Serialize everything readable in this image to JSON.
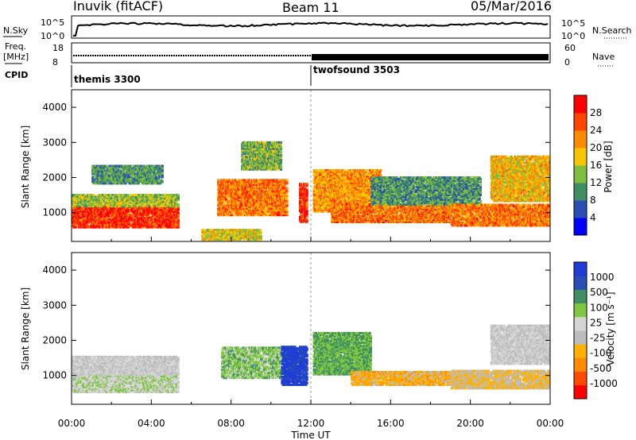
{
  "header": {
    "station": "Inuvik (fitACF)",
    "beam": "Beam 11",
    "date": "05/Mar/2016"
  },
  "strip_panels": {
    "nsky": {
      "label": "N.Sky",
      "ticks": [
        "10^5",
        "10^0"
      ]
    },
    "nsearch": {
      "label": "N.Search",
      "ticks": [
        "10^5",
        "10^0"
      ]
    },
    "freq": {
      "label_line1": "Freq.",
      "label_line2": "[MHz]",
      "ticks": [
        "18",
        "8"
      ]
    },
    "nave": {
      "label": "Nave",
      "ticks": [
        "60",
        "0"
      ]
    },
    "cpid": {
      "label": "CPID",
      "programs": [
        {
          "name": "themis 3300",
          "start_hour": 0
        },
        {
          "name": "twofsound 3503",
          "start_hour": 12
        }
      ]
    }
  },
  "colors": {
    "power": [
      "#0000ff",
      "#2a4fb4",
      "#3f8f63",
      "#7fbf3f",
      "#f7c600",
      "#ff8c00",
      "#ff4500",
      "#ff0000"
    ],
    "velocity": [
      "#ff0000",
      "#ff4a00",
      "#ff8c00",
      "#ffb000",
      "#bdbdbd",
      "#d4d4d4",
      "#7fc83f",
      "#3f8f63",
      "#2a4fb4",
      "#1f3dd6"
    ],
    "ground_scatter": "#a0a0a0"
  },
  "chart_data": [
    {
      "type": "heatmap",
      "panel": "power",
      "xlabel": "Time UT",
      "ylabel": "Slant Range [km]",
      "xlim": [
        0,
        24
      ],
      "ylim": [
        180,
        4500
      ],
      "yticks": [
        1000,
        2000,
        3000,
        4000
      ],
      "xticks": [
        "00:00",
        "04:00",
        "08:00",
        "12:00",
        "16:00",
        "20:00",
        "00:00"
      ],
      "colorbar": {
        "label": "Power [dB]",
        "ticks": [
          "28",
          "24",
          "20",
          "16",
          "12",
          "8",
          "4"
        ],
        "range": [
          0,
          30
        ]
      },
      "regions": [
        {
          "t0": 0.0,
          "t1": 5.3,
          "r0": 550,
          "r1": 1150,
          "value": 26
        },
        {
          "t0": 0.0,
          "t1": 5.3,
          "r0": 1150,
          "r1": 1500,
          "value": 14
        },
        {
          "t0": 1.0,
          "t1": 4.5,
          "r0": 1800,
          "r1": 2300,
          "value": 10
        },
        {
          "t0": 6.5,
          "t1": 9.5,
          "r0": 200,
          "r1": 500,
          "value": 16
        },
        {
          "t0": 7.3,
          "t1": 10.8,
          "r0": 900,
          "r1": 1900,
          "value": 22
        },
        {
          "t0": 8.5,
          "t1": 10.5,
          "r0": 2200,
          "r1": 3000,
          "value": 12
        },
        {
          "t0": 11.4,
          "t1": 11.8,
          "r0": 700,
          "r1": 1800,
          "value": 26
        },
        {
          "t0": 12.1,
          "t1": 15.5,
          "r0": 1000,
          "r1": 2200,
          "value": 20
        },
        {
          "t0": 13.0,
          "t1": 19.0,
          "r0": 700,
          "r1": 1200,
          "value": 22
        },
        {
          "t0": 15.0,
          "t1": 20.5,
          "r0": 1200,
          "r1": 2000,
          "value": 10
        },
        {
          "t0": 19.0,
          "t1": 24.0,
          "r0": 600,
          "r1": 1200,
          "value": 22
        },
        {
          "t0": 21.0,
          "t1": 24.0,
          "r0": 1300,
          "r1": 2600,
          "value": 18
        }
      ]
    },
    {
      "type": "heatmap",
      "panel": "velocity",
      "xlabel": "Time UT",
      "ylabel": "Slant Range [km]",
      "xlim": [
        0,
        24
      ],
      "ylim": [
        180,
        4500
      ],
      "yticks": [
        1000,
        2000,
        3000,
        4000
      ],
      "xticks": [
        "00:00",
        "04:00",
        "08:00",
        "12:00",
        "16:00",
        "20:00",
        "00:00"
      ],
      "colorbar": {
        "label": "Velocity [m s⁻¹]",
        "ticks": [
          "1000",
          "500",
          "100",
          "25",
          "-25",
          "-100",
          "-500",
          "-1000"
        ],
        "range": [
          -1000,
          1000
        ]
      },
      "regions": [
        {
          "t0": 0.0,
          "t1": 5.3,
          "r0": 500,
          "r1": 1000,
          "value": 150
        },
        {
          "t0": 0.0,
          "t1": 5.3,
          "r0": 1000,
          "r1": 1500,
          "value": 0
        },
        {
          "t0": 7.5,
          "t1": 10.5,
          "r0": 900,
          "r1": 1800,
          "value": 300
        },
        {
          "t0": 10.5,
          "t1": 11.8,
          "r0": 700,
          "r1": 1800,
          "value": 900
        },
        {
          "t0": 12.1,
          "t1": 15.0,
          "r0": 1000,
          "r1": 2200,
          "value": 400
        },
        {
          "t0": 14.0,
          "t1": 20.0,
          "r0": 700,
          "r1": 1100,
          "value": -300
        },
        {
          "t0": 19.0,
          "t1": 24.0,
          "r0": 600,
          "r1": 1100,
          "value": -200
        },
        {
          "t0": 21.0,
          "t1": 24.0,
          "r0": 1300,
          "r1": 2400,
          "value": 0
        }
      ]
    }
  ]
}
